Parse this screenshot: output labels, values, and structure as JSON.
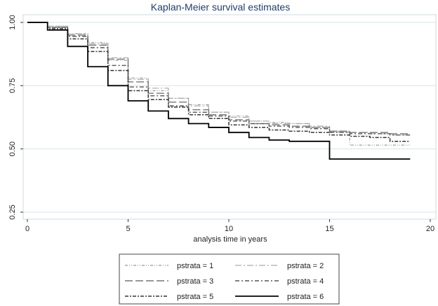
{
  "chart_data": {
    "type": "line",
    "title": "Kaplan-Meier survival estimates",
    "xlabel": "analysis time in years",
    "ylabel": "",
    "xlim": [
      0,
      20
    ],
    "ylim": [
      0.25,
      1.0
    ],
    "x_ticks": [
      0,
      5,
      10,
      15,
      20
    ],
    "x_tick_labels": [
      "0",
      "5",
      "10",
      "15",
      "20"
    ],
    "y_ticks": [
      0.25,
      0.5,
      0.75,
      1.0
    ],
    "y_tick_labels": [
      "0.25",
      "0.50",
      "0.75",
      "1.00"
    ],
    "grid": "horizontal",
    "legend_position": "bottom",
    "legend_columns": 2,
    "series": [
      {
        "name": "pstrata = 1",
        "color": "#999999",
        "dash": "dash-dot-dot",
        "width": 1.2,
        "x": [
          0,
          1,
          2,
          3,
          4,
          5,
          6,
          7,
          8,
          9,
          10,
          11,
          12,
          13,
          14,
          15,
          16,
          17,
          18,
          19
        ],
        "y": [
          1.0,
          0.985,
          0.955,
          0.92,
          0.85,
          0.78,
          0.73,
          0.7,
          0.675,
          0.645,
          0.63,
          0.61,
          0.605,
          0.6,
          0.585,
          0.565,
          0.515,
          0.515,
          0.515,
          0.515
        ]
      },
      {
        "name": "pstrata = 2",
        "color": "#aaaaaa",
        "dash": "long-dash-dot",
        "width": 1.2,
        "x": [
          0,
          1,
          2,
          3,
          4,
          5,
          6,
          7,
          8,
          9,
          10,
          11,
          12,
          13,
          14,
          15,
          16,
          17,
          18,
          19
        ],
        "y": [
          1.0,
          0.985,
          0.955,
          0.915,
          0.86,
          0.775,
          0.74,
          0.7,
          0.67,
          0.645,
          0.625,
          0.61,
          0.6,
          0.6,
          0.59,
          0.57,
          0.565,
          0.56,
          0.555,
          0.555
        ]
      },
      {
        "name": "pstrata = 3",
        "color": "#777777",
        "dash": "long-dash",
        "width": 1.4,
        "x": [
          0,
          1,
          2,
          3,
          4,
          5,
          6,
          7,
          8,
          9,
          10,
          11,
          12,
          13,
          14,
          15,
          16,
          17,
          18,
          19
        ],
        "y": [
          1.0,
          0.98,
          0.95,
          0.91,
          0.855,
          0.765,
          0.72,
          0.685,
          0.655,
          0.635,
          0.615,
          0.6,
          0.595,
          0.59,
          0.585,
          0.57,
          0.565,
          0.565,
          0.56,
          0.56
        ]
      },
      {
        "name": "pstrata = 4",
        "color": "#555555",
        "dash": "dash-dot",
        "width": 1.4,
        "x": [
          0,
          1,
          2,
          3,
          4,
          5,
          6,
          7,
          8,
          9,
          10,
          11,
          12,
          13,
          14,
          15,
          16,
          17,
          18,
          19
        ],
        "y": [
          1.0,
          0.98,
          0.945,
          0.9,
          0.83,
          0.745,
          0.71,
          0.67,
          0.645,
          0.63,
          0.61,
          0.6,
          0.59,
          0.585,
          0.58,
          0.565,
          0.56,
          0.56,
          0.555,
          0.555
        ]
      },
      {
        "name": "pstrata = 5",
        "color": "#333333",
        "dash": "short-dash-dot",
        "width": 1.5,
        "x": [
          0,
          1,
          2,
          3,
          4,
          5,
          6,
          7,
          8,
          9,
          10,
          11,
          12,
          13,
          14,
          15,
          16,
          17,
          18,
          19
        ],
        "y": [
          1.0,
          0.975,
          0.935,
          0.885,
          0.81,
          0.73,
          0.695,
          0.665,
          0.635,
          0.62,
          0.595,
          0.585,
          0.575,
          0.57,
          0.565,
          0.555,
          0.55,
          0.545,
          0.53,
          0.53
        ]
      },
      {
        "name": "pstrata = 6",
        "color": "#000000",
        "dash": "solid",
        "width": 1.8,
        "x": [
          0,
          1,
          2,
          3,
          4,
          5,
          6,
          7,
          8,
          9,
          10,
          11,
          12,
          13,
          14,
          15,
          16,
          17,
          18,
          19
        ],
        "y": [
          1.0,
          0.97,
          0.905,
          0.825,
          0.75,
          0.69,
          0.65,
          0.62,
          0.6,
          0.585,
          0.565,
          0.545,
          0.535,
          0.53,
          0.53,
          0.46,
          0.46,
          0.46,
          0.46,
          0.46
        ]
      }
    ]
  }
}
